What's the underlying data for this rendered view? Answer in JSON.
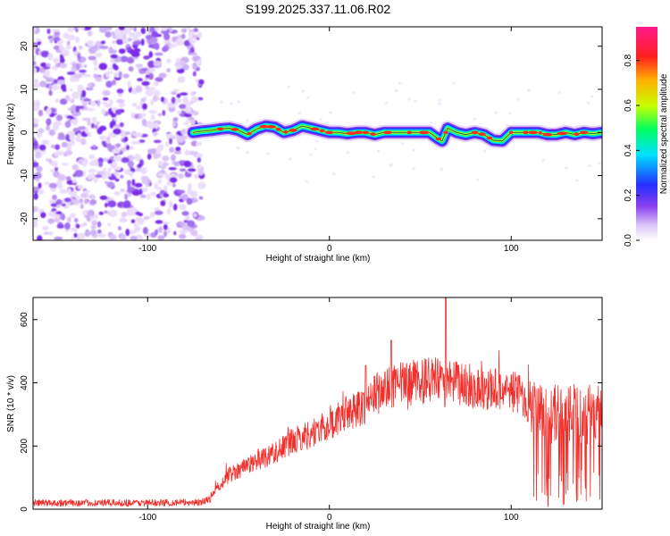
{
  "title": "S199.2025.337.11.06.R02",
  "chart_data": [
    {
      "type": "heatmap",
      "name": "spectrogram",
      "xlabel": "Height of straight line (km)",
      "ylabel": "Frequency (Hz)",
      "xlim": [
        -163,
        150
      ],
      "ylim": [
        -25,
        24.5
      ],
      "xticks": [
        -100,
        0,
        100
      ],
      "xtick_labels": [
        "-100",
        "0",
        "100"
      ],
      "yticks": [
        -20,
        -10,
        0,
        10,
        20
      ],
      "ytick_labels": [
        "-20",
        "-10",
        "0",
        "10",
        "20"
      ],
      "noise_region_x": [
        -163,
        -72
      ],
      "signal_region_x": [
        -75,
        150
      ],
      "ridge": {
        "x": [
          -75,
          -70,
          -65,
          -60,
          -55,
          -50,
          -45,
          -40,
          -35,
          -30,
          -25,
          -20,
          -15,
          -10,
          -5,
          0,
          5,
          10,
          15,
          20,
          25,
          30,
          35,
          40,
          45,
          50,
          55,
          60,
          62,
          65,
          70,
          75,
          80,
          85,
          90,
          95,
          100,
          105,
          110,
          115,
          120,
          125,
          130,
          135,
          140,
          145,
          150
        ],
        "freq_hz": [
          0,
          0.3,
          0.5,
          0.8,
          1.0,
          0.5,
          -0.5,
          0.8,
          1.5,
          1.2,
          0,
          0.5,
          1.5,
          1.0,
          0.5,
          0,
          0,
          -0.3,
          0,
          0,
          -0.5,
          0,
          0,
          0,
          0,
          0,
          0,
          -1.5,
          -2.0,
          1.0,
          0,
          -0.5,
          0,
          -0.5,
          -1.8,
          -2.0,
          0,
          0,
          0,
          0,
          -0.5,
          -0.5,
          0,
          -0.5,
          0,
          -0.3,
          0
        ]
      },
      "colorbar": {
        "label": "Normalized spectral amplitude",
        "range": [
          0,
          0.95
        ],
        "ticks": [
          0.0,
          0.2,
          0.4,
          0.6,
          0.8
        ],
        "tick_labels": [
          "0.0",
          "0.2",
          "0.4",
          "0.6",
          "0.8"
        ],
        "colors": [
          "#ffffff",
          "#dcc8f8",
          "#8a3ef0",
          "#2430ff",
          "#00e0ff",
          "#00ff60",
          "#c8ff00",
          "#ffb000",
          "#ff2020",
          "#ff1a8c"
        ]
      }
    },
    {
      "type": "line",
      "name": "snr",
      "xlabel": "Height of straight line (km)",
      "ylabel": "SNR (10 * v/v)",
      "xlim": [
        -163,
        150
      ],
      "ylim": [
        0,
        670
      ],
      "xticks": [
        -100,
        0,
        100
      ],
      "xtick_labels": [
        "-100",
        "0",
        "100"
      ],
      "yticks": [
        0,
        200,
        400,
        600
      ],
      "ytick_labels": [
        "0",
        "200",
        "400",
        "600"
      ],
      "color": "#f0302c",
      "envelope": {
        "x": [
          -163,
          -100,
          -70,
          -65,
          -60,
          -55,
          -50,
          -40,
          -30,
          -20,
          -10,
          0,
          10,
          20,
          25,
          30,
          35,
          40,
          50,
          60,
          62,
          65,
          70,
          80,
          90,
          100,
          105,
          110,
          115,
          120,
          130,
          140,
          150
        ],
        "y": [
          20,
          20,
          22,
          35,
          80,
          110,
          125,
          155,
          180,
          215,
          240,
          265,
          305,
          330,
          365,
          375,
          385,
          395,
          405,
          410,
          385,
          395,
          400,
          385,
          380,
          375,
          365,
          330,
          305,
          300,
          300,
          300,
          300
        ]
      },
      "spikes": [
        {
          "x": 20,
          "y": 455
        },
        {
          "x": 34,
          "y": 535
        },
        {
          "x": 64,
          "y": 670
        },
        {
          "x": 70,
          "y": 465
        }
      ]
    }
  ]
}
